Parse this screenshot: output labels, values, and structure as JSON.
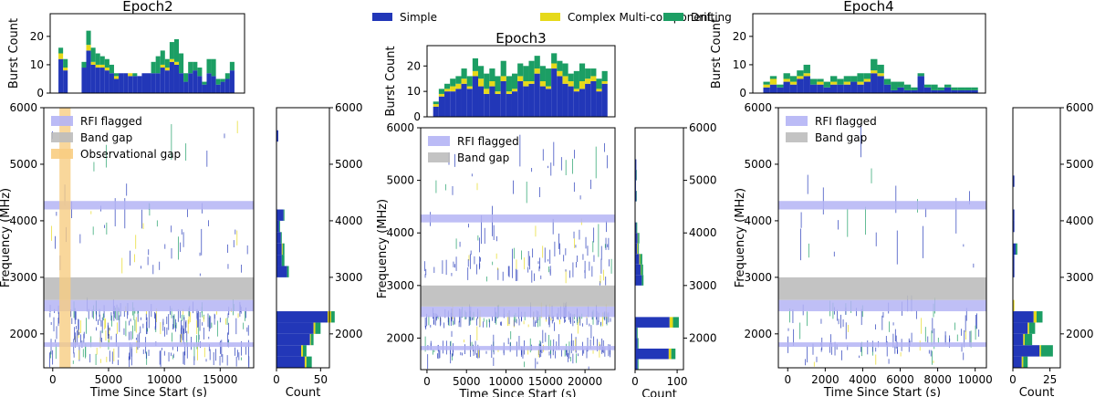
{
  "legend_top": {
    "entries": [
      {
        "label": "Simple",
        "color": "#2237b8"
      },
      {
        "label": "Complex Multi-component",
        "color": "#e6d91a"
      },
      {
        "label": "Drifting",
        "color": "#1c9e64"
      }
    ]
  },
  "panel_legend": {
    "rfi": "RFI flagged",
    "band_gap": "Band gap",
    "obs_gap": "Observational gap"
  },
  "colors": {
    "simple": "#2237b8",
    "complex": "#e6d91a",
    "drifting": "#1c9e64",
    "rfi": "#b4b4f5",
    "band_gap": "#bcbcbc",
    "obs_gap": "#f8cd82"
  },
  "chart_data": [
    {
      "title": "Epoch2",
      "type": "bar",
      "top_hist": {
        "ylabel": "Burst Count",
        "ylim": [
          0,
          28
        ],
        "yticks": [
          0,
          10,
          20
        ],
        "xlim": [
          -800,
          18000
        ],
        "bin_width": 448,
        "bin_starts": [
          0,
          448,
          2240,
          2688,
          3136,
          3584,
          4032,
          4480,
          4928,
          5376,
          5824,
          6272,
          6720,
          7168,
          7616,
          8064,
          8512,
          8960,
          9408,
          9856,
          10304,
          10752,
          11200,
          11648,
          12096,
          12544,
          12992,
          13440,
          13888,
          14336,
          14784,
          15232,
          15680,
          16128,
          16576
        ],
        "series": [
          {
            "name": "Simple",
            "values": [
              12,
              8,
              9,
              15,
              10,
              9,
              9,
              8,
              7,
              5,
              7,
              7,
              6,
              6,
              6,
              7,
              7,
              7,
              7,
              9,
              8,
              11,
              10,
              7,
              4,
              7,
              8,
              6,
              3,
              7,
              6,
              3,
              4,
              5,
              8
            ]
          },
          {
            "name": "Complex Multi-component",
            "values": [
              2,
              1,
              0,
              2,
              1,
              1,
              1,
              1,
              0,
              1,
              0,
              0,
              1,
              0,
              0,
              0,
              0,
              0,
              0,
              1,
              1,
              1,
              1,
              0,
              0,
              0,
              0,
              0,
              0,
              0,
              0,
              0,
              0,
              0,
              0
            ]
          },
          {
            "name": "Drifting",
            "values": [
              2,
              3,
              2,
              5,
              5,
              4,
              3,
              3,
              3,
              1,
              0,
              0,
              0,
              1,
              0,
              0,
              0,
              4,
              6,
              5,
              3,
              6,
              8,
              7,
              3,
              4,
              3,
              3,
              1,
              5,
              6,
              2,
              1,
              2,
              3
            ]
          }
        ]
      },
      "main": {
        "ylabel": "Frequency (MHz)",
        "xlabel": "Time Since Start (s)",
        "xlim": [
          -800,
          18000
        ],
        "ylim": [
          1400,
          6000
        ],
        "xticks": [
          0,
          5000,
          10000,
          15000
        ],
        "yticks": [
          2000,
          3000,
          4000,
          5000,
          6000
        ],
        "rfi_bands": [
          [
            4200,
            4350
          ],
          [
            2400,
            2600
          ],
          [
            1770,
            1850
          ]
        ],
        "band_gap": [
          2600,
          3000
        ],
        "obs_gap": [
          600,
          1600
        ],
        "legend_items": [
          "rfi",
          "band_gap",
          "obs_gap"
        ]
      },
      "side_hist": {
        "xlabel": "Count",
        "xlim": [
          0,
          60
        ],
        "xticks": [
          0,
          50
        ],
        "bin_edges": [
          1400,
          1600,
          1800,
          2000,
          2200,
          2400,
          2600,
          2800,
          3000,
          3200,
          3400,
          3600,
          3800,
          4000,
          4200,
          4400,
          4600,
          4800,
          5000,
          5200,
          5400,
          5600,
          5800,
          6000
        ],
        "series": [
          {
            "name": "Simple",
            "values": [
              32,
              28,
              38,
              42,
              58,
              0,
              0,
              0,
              12,
              6,
              6,
              5,
              3,
              8,
              0,
              0,
              0,
              0,
              0,
              0,
              2,
              0,
              0
            ]
          },
          {
            "name": "Complex Multi-component",
            "values": [
              2,
              2,
              1,
              2,
              4,
              0,
              0,
              0,
              0,
              0,
              1,
              0,
              0,
              0,
              0,
              0,
              0,
              0,
              0,
              0,
              0,
              0,
              0
            ]
          },
          {
            "name": "Drifting",
            "values": [
              6,
              4,
              3,
              6,
              4,
              0,
              0,
              0,
              2,
              3,
              2,
              1,
              1,
              1,
              0,
              0,
              0,
              0,
              0,
              0,
              0,
              0,
              0
            ]
          }
        ]
      }
    },
    {
      "title": "Epoch3",
      "type": "bar",
      "top_hist": {
        "ylabel": "Burst Count",
        "ylim": [
          0,
          28
        ],
        "yticks": [
          0,
          10,
          20
        ],
        "xlim": [
          -800,
          23800
        ],
        "bin_width": 736,
        "bin_starts": [
          0,
          736,
          1472,
          2208,
          2944,
          3680,
          4416,
          5152,
          5888,
          6624,
          7360,
          8096,
          8832,
          9568,
          10304,
          11040,
          11776,
          12512,
          13248,
          13984,
          14720,
          15456,
          16192,
          16928,
          17664,
          18400,
          19136,
          19872,
          20608,
          21344,
          22080
        ],
        "series": [
          {
            "name": "Simple",
            "values": [
              4,
              8,
              10,
              10,
              11,
              13,
              11,
              16,
              12,
              9,
              12,
              9,
              14,
              9,
              10,
              14,
              12,
              13,
              17,
              12,
              11,
              19,
              16,
              13,
              12,
              10,
              11,
              13,
              14,
              10,
              13
            ]
          },
          {
            "name": "Complex Multi-component",
            "values": [
              1,
              1,
              1,
              2,
              2,
              2,
              1,
              2,
              3,
              2,
              2,
              1,
              2,
              1,
              1,
              2,
              2,
              1,
              2,
              2,
              1,
              2,
              2,
              3,
              2,
              1,
              3,
              2,
              2,
              1,
              1
            ]
          },
          {
            "name": "Drifting",
            "values": [
              1,
              2,
              2,
              3,
              3,
              4,
              4,
              5,
              5,
              6,
              5,
              6,
              6,
              6,
              6,
              5,
              6,
              8,
              5,
              6,
              7,
              4,
              4,
              5,
              3,
              7,
              7,
              4,
              3,
              4,
              4
            ]
          }
        ]
      },
      "main": {
        "ylabel": "Frequency (MHz)",
        "xlabel": "Time Since Start (s)",
        "xlim": [
          -800,
          23800
        ],
        "ylim": [
          1400,
          6000
        ],
        "xticks": [
          0,
          5000,
          10000,
          15000,
          20000
        ],
        "yticks": [
          2000,
          3000,
          4000,
          5000,
          6000
        ],
        "rfi_bands": [
          [
            4200,
            4350
          ],
          [
            2400,
            2600
          ],
          [
            1770,
            1850
          ]
        ],
        "band_gap": [
          2600,
          3000
        ],
        "obs_gap": null,
        "legend_items": [
          "rfi",
          "band_gap"
        ]
      },
      "side_hist": {
        "xlabel": "Count",
        "xlim": [
          0,
          115
        ],
        "xticks": [
          0,
          100
        ],
        "bin_edges": [
          1400,
          1600,
          1800,
          2000,
          2200,
          2400,
          2600,
          2800,
          3000,
          3200,
          3400,
          3600,
          3800,
          4000,
          4200,
          4400,
          4600,
          4800,
          5000,
          5200,
          5400,
          5600,
          5800,
          6000
        ],
        "series": [
          {
            "name": "Simple",
            "values": [
              6,
              80,
              6,
              4,
              82,
              0,
              0,
              0,
              16,
              13,
              10,
              5,
              6,
              3,
              0,
              0,
              3,
              2,
              3,
              3,
              1,
              1,
              0
            ]
          },
          {
            "name": "Complex Multi-component",
            "values": [
              0,
              6,
              0,
              0,
              8,
              0,
              0,
              0,
              0,
              1,
              2,
              2,
              1,
              0,
              0,
              0,
              0,
              0,
              0,
              0,
              0,
              0,
              0
            ]
          },
          {
            "name": "Drifting",
            "values": [
              2,
              10,
              2,
              2,
              14,
              0,
              0,
              0,
              4,
              5,
              5,
              2,
              3,
              2,
              0,
              0,
              1,
              0,
              1,
              0,
              0,
              0,
              0
            ]
          }
        ]
      }
    },
    {
      "title": "Epoch4",
      "type": "bar",
      "top_hist": {
        "ylabel": "Burst Count",
        "ylim": [
          0,
          28
        ],
        "yticks": [
          0,
          10,
          20
        ],
        "xlim": [
          -500,
          10600
        ],
        "bin_width": 320,
        "bin_starts": [
          0,
          320,
          640,
          960,
          1280,
          1600,
          1920,
          2240,
          2560,
          2880,
          3200,
          3520,
          3840,
          4160,
          4480,
          4800,
          5120,
          5440,
          5760,
          6080,
          6400,
          6720,
          7040,
          7360,
          7680,
          8000,
          8320,
          8640,
          8960,
          9280,
          9600,
          9920
        ],
        "series": [
          {
            "name": "Simple",
            "values": [
              2,
              3,
              2,
              4,
              3,
              5,
              6,
              3,
              3,
              2,
              3,
              3,
              3,
              4,
              3,
              4,
              7,
              6,
              3,
              1,
              2,
              1,
              1,
              6,
              2,
              1,
              1,
              2,
              1,
              1,
              1,
              1
            ]
          },
          {
            "name": "Complex Multi-component",
            "values": [
              1,
              2,
              0,
              1,
              1,
              1,
              1,
              0,
              1,
              0,
              1,
              0,
              1,
              0,
              1,
              1,
              1,
              1,
              0,
              0,
              0,
              0,
              0,
              0,
              0,
              0,
              0,
              0,
              0,
              0,
              0,
              0
            ]
          },
          {
            "name": "Drifting",
            "values": [
              1,
              1,
              1,
              2,
              2,
              2,
              3,
              2,
              1,
              2,
              2,
              2,
              2,
              2,
              3,
              2,
              4,
              3,
              2,
              3,
              2,
              2,
              1,
              1,
              1,
              2,
              1,
              1,
              1,
              1,
              1,
              1
            ]
          }
        ]
      },
      "main": {
        "ylabel": "Frequency (MHz)",
        "xlabel": "Time Since Start (s)",
        "xlim": [
          -500,
          10600
        ],
        "ylim": [
          1400,
          6000
        ],
        "xticks": [
          0,
          2000,
          4000,
          6000,
          8000,
          10000
        ],
        "yticks": [
          2000,
          3000,
          4000,
          5000,
          6000
        ],
        "rfi_bands": [
          [
            4200,
            4350
          ],
          [
            2400,
            2600
          ],
          [
            1770,
            1850
          ]
        ],
        "band_gap": [
          2600,
          3000
        ],
        "obs_gap": null,
        "legend_items": [
          "rfi",
          "band_gap"
        ]
      },
      "side_hist": {
        "xlabel": "Count",
        "xlim": [
          0,
          32
        ],
        "xticks": [
          0,
          25
        ],
        "bin_edges": [
          1400,
          1600,
          1800,
          2000,
          2200,
          2400,
          2600,
          2800,
          3000,
          3200,
          3400,
          3600,
          3800,
          4000,
          4200,
          4400,
          4600,
          4800,
          5000,
          5200,
          5400,
          5600,
          5800,
          6000
        ],
        "series": [
          {
            "name": "Simple",
            "values": [
              6,
              18,
              7,
              10,
              14,
              0,
              0,
              0,
              1,
              1,
              2,
              0,
              1,
              1,
              0,
              0,
              1,
              0,
              0,
              0,
              0,
              0,
              0
            ]
          },
          {
            "name": "Complex Multi-component",
            "values": [
              1,
              1,
              1,
              1,
              2,
              1,
              0,
              0,
              0,
              0,
              0,
              0,
              0,
              0,
              0,
              0,
              0,
              0,
              0,
              0,
              0,
              0,
              0
            ]
          },
          {
            "name": "Drifting",
            "values": [
              3,
              8,
              5,
              4,
              4,
              0,
              0,
              0,
              0,
              0,
              1,
              0,
              0,
              0,
              0,
              0,
              0,
              0,
              0,
              0,
              0,
              0,
              0
            ]
          }
        ]
      }
    }
  ]
}
